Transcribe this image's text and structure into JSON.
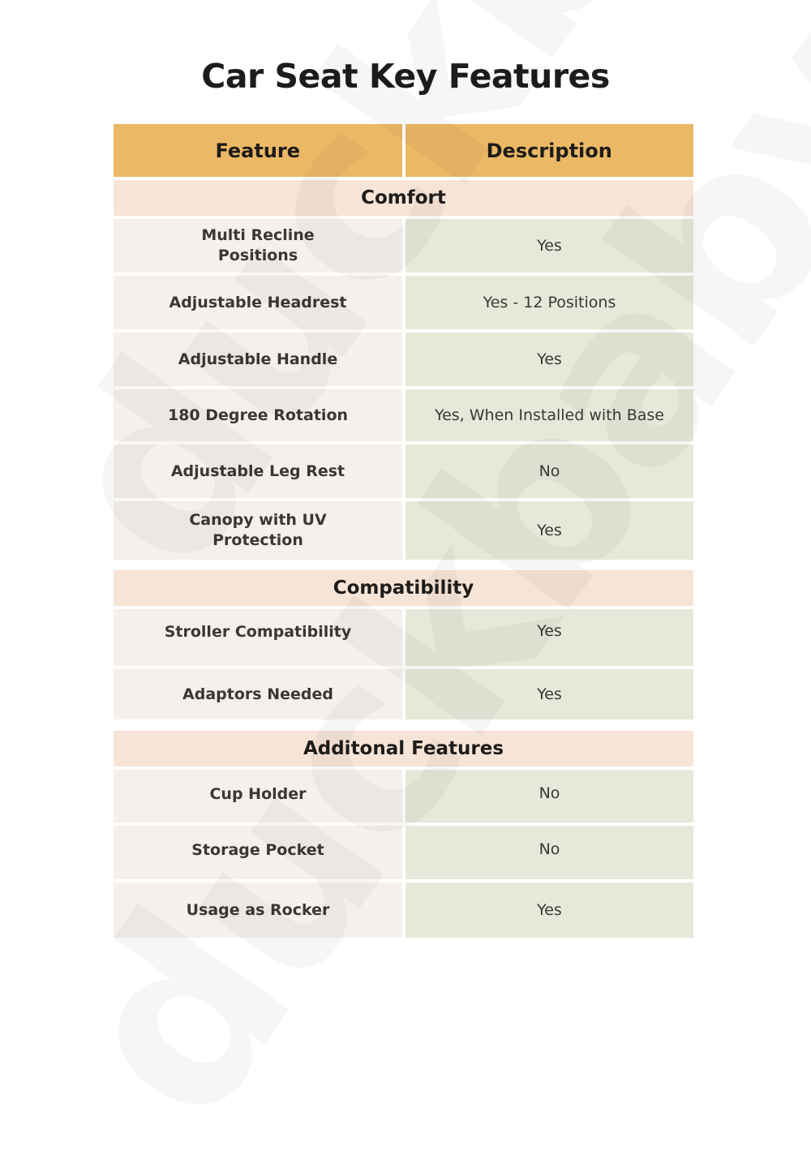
{
  "title": "Car Seat Key Features",
  "watermark": "duckbaby",
  "colors": {
    "header": "#EBB865",
    "section": "#F6E4D6",
    "feature_cell": "#F5F0EC",
    "description_cell": "#E6E9D9"
  },
  "headers": {
    "feature": "Feature",
    "description": "Description"
  },
  "sections": [
    {
      "name": "Comfort",
      "rows": [
        {
          "feature": "Multi Recline Positions",
          "description": "Yes"
        },
        {
          "feature": "Adjustable Headrest",
          "description": "Yes -  12 Positions"
        },
        {
          "feature": "Adjustable Handle",
          "description": "Yes"
        },
        {
          "feature": "180 Degree Rotation",
          "description": "Yes, When Installed with Base"
        },
        {
          "feature": "Adjustable Leg Rest",
          "description": "No"
        },
        {
          "feature": "Canopy with UV Protection",
          "description": "Yes"
        }
      ]
    },
    {
      "name": "Compatibility",
      "rows": [
        {
          "feature": "Stroller Compatibility",
          "description": "Yes"
        },
        {
          "feature": "Adaptors Needed",
          "description": "Yes"
        }
      ]
    },
    {
      "name": "Additonal Features",
      "rows": [
        {
          "feature": "Cup Holder",
          "description": "No"
        },
        {
          "feature": "Storage Pocket",
          "description": "No"
        },
        {
          "feature": "Usage as Rocker",
          "description": "Yes"
        }
      ]
    }
  ]
}
